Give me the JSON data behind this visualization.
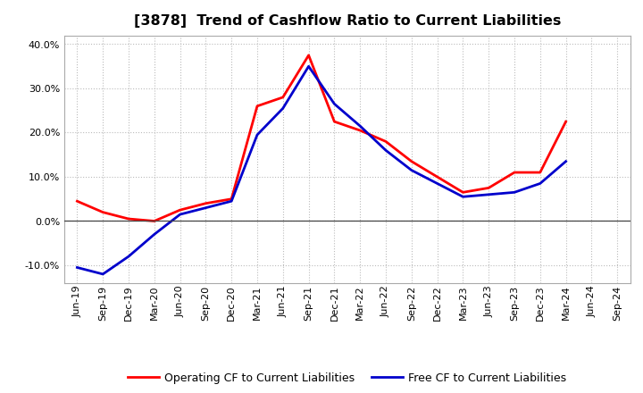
{
  "title": "[3878]  Trend of Cashflow Ratio to Current Liabilities",
  "x_labels": [
    "Jun-19",
    "Sep-19",
    "Dec-19",
    "Mar-20",
    "Jun-20",
    "Sep-20",
    "Dec-20",
    "Mar-21",
    "Jun-21",
    "Sep-21",
    "Dec-21",
    "Mar-22",
    "Jun-22",
    "Sep-22",
    "Dec-22",
    "Mar-23",
    "Jun-23",
    "Sep-23",
    "Dec-23",
    "Mar-24",
    "Jun-24",
    "Sep-24"
  ],
  "operating_cf": [
    4.5,
    2.0,
    0.5,
    0.0,
    2.5,
    4.0,
    5.0,
    26.0,
    28.0,
    37.5,
    22.5,
    20.5,
    18.0,
    13.5,
    10.0,
    6.5,
    7.5,
    11.0,
    11.0,
    22.5,
    null,
    null
  ],
  "free_cf": [
    -10.5,
    -12.0,
    -8.0,
    -3.0,
    1.5,
    3.0,
    4.5,
    19.5,
    25.5,
    35.0,
    26.5,
    21.5,
    16.0,
    11.5,
    8.5,
    5.5,
    6.0,
    6.5,
    8.5,
    13.5,
    null,
    null
  ],
  "ylim": [
    -14.0,
    42.0
  ],
  "yticks": [
    -10.0,
    0.0,
    10.0,
    20.0,
    30.0,
    40.0
  ],
  "operating_color": "#FF0000",
  "free_color": "#0000CC",
  "background_color": "#FFFFFF",
  "plot_bg_color": "#FFFFFF",
  "grid_color": "#BBBBBB",
  "legend_operating": "Operating CF to Current Liabilities",
  "legend_free": "Free CF to Current Liabilities",
  "title_fontsize": 11.5,
  "tick_fontsize": 8.0
}
